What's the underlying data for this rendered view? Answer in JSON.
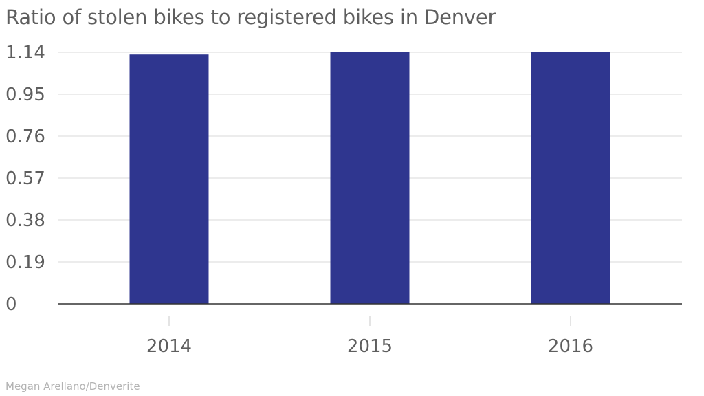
{
  "title": "Ratio of stolen bikes to registered bikes in Denver",
  "source": "Megan Arellano/Denverite",
  "colors": {
    "bar": "#2f368f",
    "grid": "#d9d9d9",
    "axis": "#333333",
    "text": "#5e5e5e",
    "source": "#b3b3b3"
  },
  "chart_data": {
    "type": "bar",
    "title": "Ratio of stolen bikes to registered bikes in Denver",
    "xlabel": "",
    "ylabel": "",
    "categories": [
      "2014",
      "2015",
      "2016"
    ],
    "values": [
      1.13,
      1.14,
      1.14
    ],
    "ylim": [
      0,
      1.14
    ],
    "yticks": [
      "0",
      "0.19",
      "0.38",
      "0.57",
      "0.76",
      "0.95",
      "1.14"
    ],
    "grid": true,
    "legend": "none"
  }
}
